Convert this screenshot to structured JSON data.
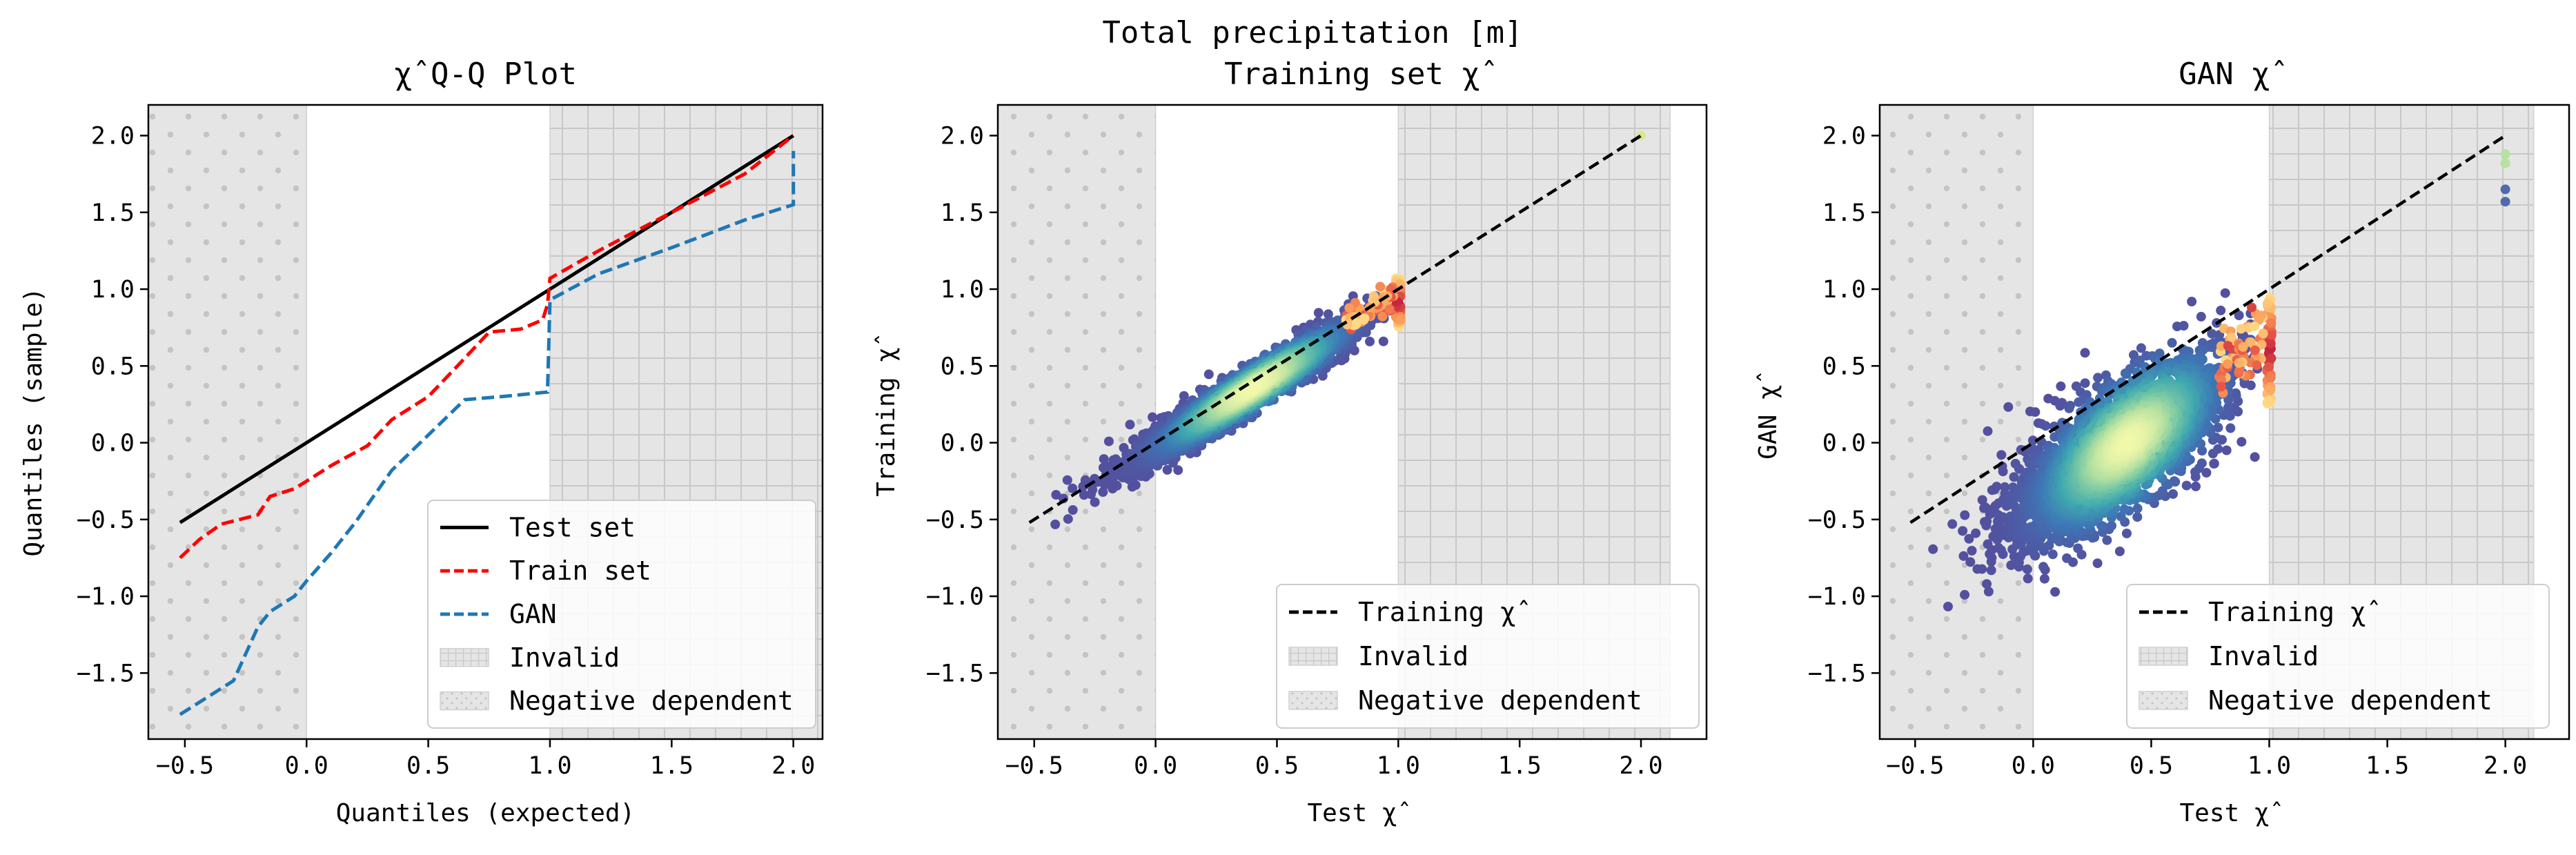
{
  "suptitle": "Total precipitation [m]",
  "colors": {
    "test_set": "#000000",
    "train_set": "#ff0000",
    "gan": "#1f77b4",
    "invalid_fill": "#e5e5e5",
    "region_hatch": "#c8c8c8"
  },
  "chart_data": [
    {
      "type": "line",
      "title": "χ̂ Q-Q Plot",
      "xlabel": "Quantiles (expected)",
      "ylabel": "Quantiles (sample)",
      "xlim": [
        -0.65,
        2.12
      ],
      "ylim": [
        -1.93,
        2.2
      ],
      "xticks": [
        "−0.5",
        "0.0",
        "0.5",
        "1.0",
        "1.5",
        "2.0"
      ],
      "yticks": [
        "−1.5",
        "−1.0",
        "−0.5",
        "0.0",
        "0.5",
        "1.0",
        "1.5",
        "2.0"
      ],
      "regions": [
        {
          "name": "Negative dependent",
          "x": [
            -0.66,
            0.0
          ],
          "pattern": "dots"
        },
        {
          "name": "Invalid",
          "x": [
            1.0,
            2.12
          ],
          "pattern": "grid"
        }
      ],
      "series": [
        {
          "name": "Test set",
          "style": "solid",
          "x": [
            -0.52,
            2.0
          ],
          "y": [
            -0.52,
            2.0
          ]
        },
        {
          "name": "Train set",
          "style": "dashed",
          "x": [
            -0.52,
            -0.44,
            -0.35,
            -0.2,
            -0.15,
            -0.05,
            0.0,
            0.1,
            0.25,
            0.35,
            0.5,
            0.62,
            0.75,
            0.88,
            0.97,
            0.99,
            1.0,
            1.2,
            1.5,
            1.8,
            2.0
          ],
          "y": [
            -0.75,
            -0.63,
            -0.53,
            -0.47,
            -0.35,
            -0.3,
            -0.25,
            -0.15,
            -0.02,
            0.15,
            0.3,
            0.5,
            0.72,
            0.74,
            0.8,
            0.9,
            1.07,
            1.25,
            1.5,
            1.75,
            2.0
          ]
        },
        {
          "name": "GAN",
          "style": "dashed",
          "x": [
            -0.52,
            -0.3,
            -0.2,
            -0.15,
            -0.05,
            0.0,
            0.1,
            0.2,
            0.35,
            0.5,
            0.65,
            0.8,
            0.99,
            1.0,
            1.0,
            1.2,
            1.5,
            1.8,
            2.0,
            2.0
          ],
          "y": [
            -1.77,
            -1.55,
            -1.2,
            -1.1,
            -1.0,
            -0.9,
            -0.72,
            -0.52,
            -0.18,
            0.05,
            0.28,
            0.3,
            0.33,
            0.93,
            0.93,
            1.1,
            1.27,
            1.45,
            1.55,
            1.9
          ]
        }
      ],
      "legend": {
        "placement": "lower right",
        "entries": [
          "Test set",
          "Train set",
          "GAN",
          "Invalid",
          "Negative dependent"
        ]
      }
    },
    {
      "type": "scatter",
      "title": "Training set χ̂",
      "xlabel": "Test χ̂",
      "ylabel": "Training χ̂",
      "xlim": [
        -0.65,
        2.27
      ],
      "ylim": [
        -1.93,
        2.2
      ],
      "xticks": [
        "−0.5",
        "0.0",
        "0.5",
        "1.0",
        "1.5",
        "2.0"
      ],
      "yticks": [
        "−1.5",
        "−1.0",
        "−0.5",
        "0.0",
        "0.5",
        "1.0",
        "1.5",
        "2.0"
      ],
      "regions": [
        {
          "name": "Negative dependent",
          "x": [
            -0.66,
            0.0
          ],
          "pattern": "dots"
        },
        {
          "name": "Invalid",
          "x": [
            1.0,
            2.12
          ],
          "pattern": "grid"
        }
      ],
      "reference_line": {
        "name": "Training χ̂",
        "x": [
          -0.52,
          2.0
        ],
        "y": [
          -0.52,
          2.0
        ]
      },
      "cloud": {
        "slope": 0.96,
        "intercept": -0.03,
        "noise": 0.07,
        "x_range": [
          -0.55,
          0.95
        ]
      },
      "edge_column": {
        "x": 1.0,
        "y_range": [
          0.75,
          1.07
        ]
      },
      "outlier_points": [
        {
          "x": 2.0,
          "y": 2.0
        }
      ],
      "legend": {
        "placement": "lower right",
        "entries": [
          "Training χ̂",
          "Invalid",
          "Negative dependent"
        ]
      }
    },
    {
      "type": "scatter",
      "title": "GAN χ̂",
      "xlabel": "Test χ̂",
      "ylabel": "GAN χ̂",
      "xlim": [
        -0.65,
        2.27
      ],
      "ylim": [
        -1.93,
        2.2
      ],
      "xticks": [
        "−0.5",
        "0.0",
        "0.5",
        "1.0",
        "1.5",
        "2.0"
      ],
      "yticks": [
        "−1.5",
        "−1.0",
        "−0.5",
        "0.0",
        "0.5",
        "1.0",
        "1.5",
        "2.0"
      ],
      "regions": [
        {
          "name": "Negative dependent",
          "x": [
            -0.66,
            0.0
          ],
          "pattern": "dots"
        },
        {
          "name": "Invalid",
          "x": [
            1.0,
            2.12
          ],
          "pattern": "grid"
        }
      ],
      "reference_line": {
        "name": "Training χ̂",
        "x": [
          -0.52,
          2.0
        ],
        "y": [
          -0.52,
          2.0
        ]
      },
      "cloud": {
        "slope": 0.95,
        "intercept": -0.38,
        "noise": 0.2,
        "x_range": [
          -0.6,
          0.95
        ]
      },
      "edge_column": {
        "x": 1.0,
        "y_range": [
          0.25,
          0.95
        ]
      },
      "outlier_points": [
        {
          "x": 2.0,
          "y": 1.88
        },
        {
          "x": 2.0,
          "y": 1.82
        },
        {
          "x": 2.0,
          "y": 1.65
        },
        {
          "x": 2.0,
          "y": 1.57
        }
      ],
      "legend": {
        "placement": "lower right",
        "entries": [
          "Training χ̂",
          "Invalid",
          "Negative dependent"
        ]
      }
    }
  ]
}
